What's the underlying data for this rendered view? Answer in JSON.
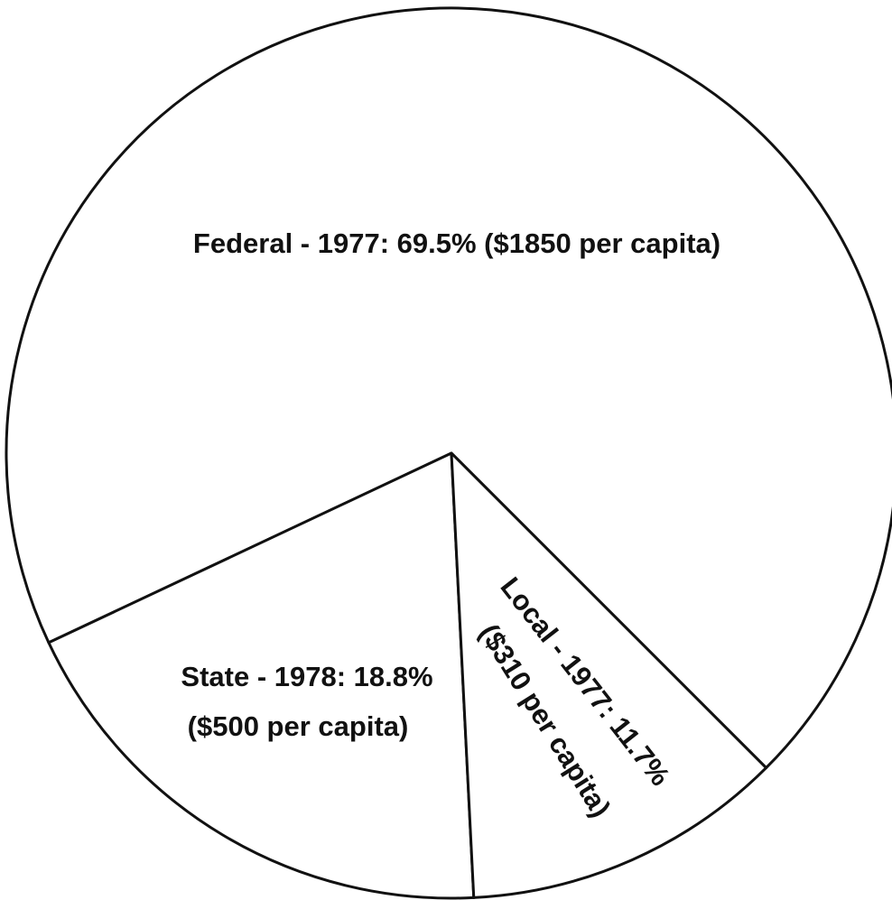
{
  "chart_data": {
    "type": "pie",
    "categories": [
      "Federal - 1977:",
      "State - 1978:",
      "Local - 1977:"
    ],
    "values": [
      69.5,
      18.8,
      11.7
    ],
    "value_labels": [
      "69.5%",
      "18.8%",
      "11.7%"
    ],
    "per_capita_labels": [
      "($1850 per capita)",
      "($500 per capita)",
      "($310 per capita)"
    ],
    "colors": [
      "#ffffff",
      "#ffffff",
      "#ffffff"
    ]
  }
}
